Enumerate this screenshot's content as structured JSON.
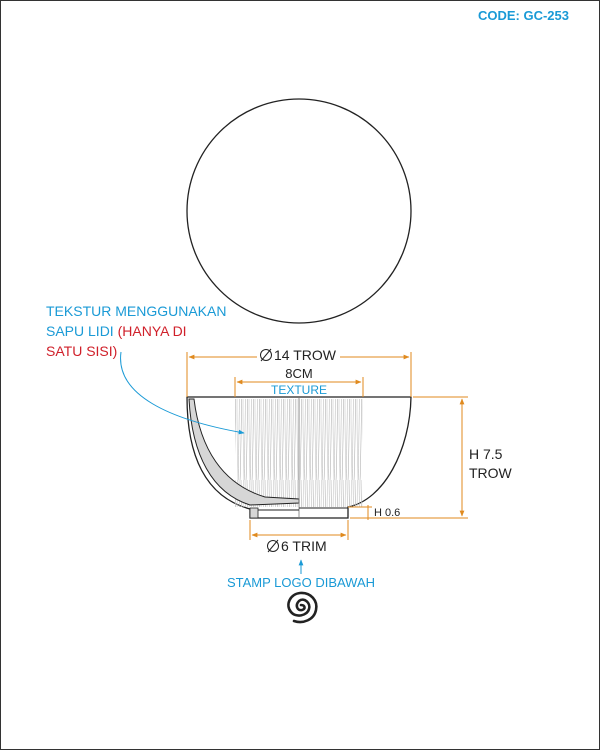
{
  "code": "CODE: GC-253",
  "note": {
    "line1": "TEKSTUR MENGGUNAKAN",
    "line2_blue": "SAPU LIDI",
    "line2_red": "(HANYA DI",
    "line3_red": "SATU SISI)"
  },
  "dims": {
    "diameter_top": "14 TROW",
    "texture_width": "8CM",
    "texture_label": "TEXTURE",
    "height_main_1": "H 7.5",
    "height_main_2": "TROW",
    "foot_height": "H 0.6",
    "diameter_foot": "6 TRIM"
  },
  "stamp_label": "STAMP LOGO DIBAWAH",
  "colors": {
    "blue": "#1a9ad6",
    "red": "#d0202a",
    "orange": "#e08a1e",
    "line": "#222222"
  },
  "icons": [
    "spiral-logo-icon",
    "diameter-icon"
  ]
}
